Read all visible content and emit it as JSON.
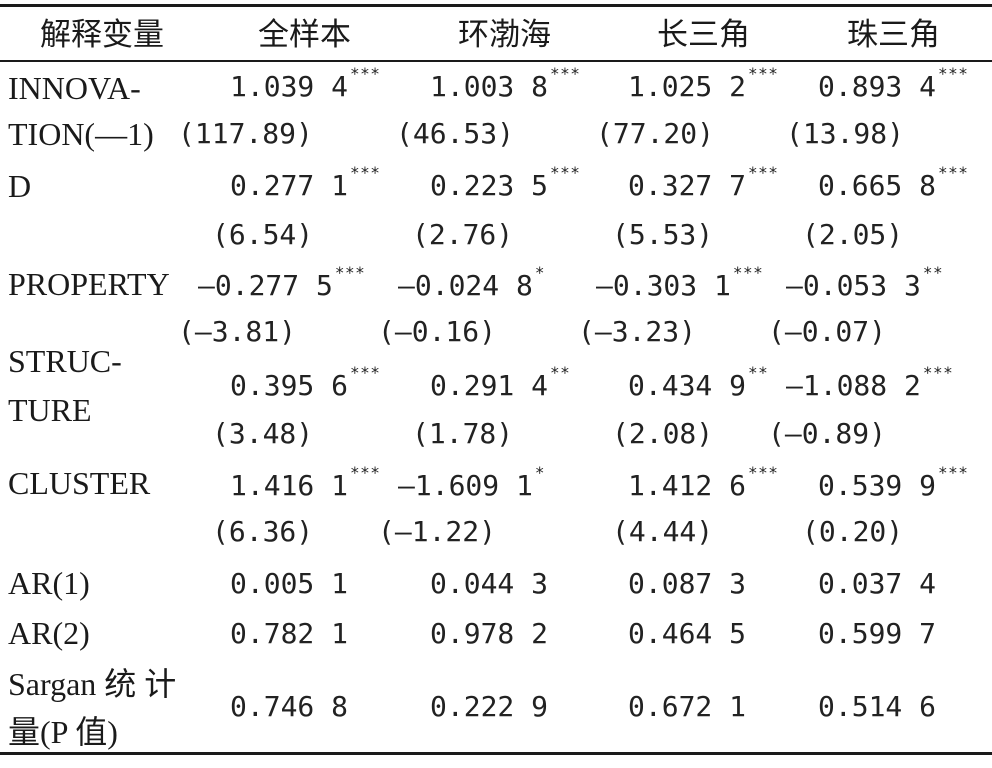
{
  "headers": [
    "解释变量",
    "全样本",
    "环渤海",
    "长三角",
    "珠三角"
  ],
  "row_labels": {
    "innovation_1": "INNOVA-",
    "innovation_2": "TION(—1)",
    "d": "D",
    "property": "PROPERTY",
    "structure_1": "STRUC-",
    "structure_2": "TURE",
    "cluster": "CLUSTER",
    "ar1": "AR(1)",
    "ar2": "AR(2)",
    "sargan_1": "Sargan  统  计",
    "sargan_2": "量(P 值)"
  },
  "innovation": {
    "coef": [
      "1.039 4",
      "1.003 8",
      "1.025 2",
      "0.893 4"
    ],
    "sig": [
      "***",
      "***",
      "***",
      "***"
    ],
    "t": [
      "(117.89)",
      "(46.53)",
      "(77.20)",
      "(13.98)"
    ]
  },
  "d": {
    "coef": [
      "0.277 1",
      "0.223 5",
      "0.327 7",
      "0.665 8"
    ],
    "sig": [
      "***",
      "***",
      "***",
      "***"
    ],
    "t": [
      "(6.54)",
      "(2.76)",
      "(5.53)",
      "(2.05)"
    ]
  },
  "property": {
    "coef": [
      "—0.277 5",
      "—0.024 8",
      "—0.303 1",
      "—0.053 3"
    ],
    "sig": [
      "***",
      "*",
      "***",
      "**"
    ],
    "t": [
      "(—3.81)",
      "(—0.16)",
      "(—3.23)",
      "(—0.07)"
    ]
  },
  "structure": {
    "coef": [
      "0.395 6",
      "0.291 4",
      "0.434 9",
      "—1.088 2"
    ],
    "sig": [
      "***",
      "**",
      "**",
      "***"
    ],
    "t": [
      "(3.48)",
      "(1.78)",
      "(2.08)",
      "(—0.89)"
    ]
  },
  "cluster": {
    "coef": [
      "1.416 1",
      "—1.609 1",
      "1.412 6",
      "0.539 9"
    ],
    "sig": [
      "***",
      "*",
      "***",
      "***"
    ],
    "t": [
      "(6.36)",
      "(—1.22)",
      "(4.44)",
      "(0.20)"
    ]
  },
  "ar1": [
    "0.005 1",
    "0.044 3",
    "0.087 3",
    "0.037 4"
  ],
  "ar2": [
    "0.782 1",
    "0.978 2",
    "0.464 5",
    "0.599 7"
  ],
  "sargan": [
    "0.746 8",
    "0.222 9",
    "0.672 1",
    "0.514 6"
  ]
}
